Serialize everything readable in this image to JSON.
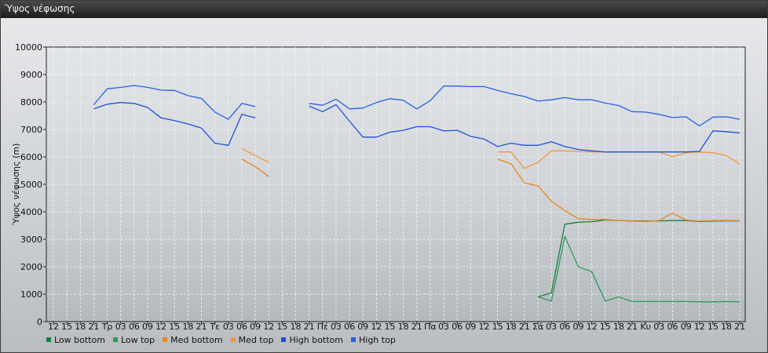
{
  "window": {
    "title": "Ύψος νέφωσης"
  },
  "chart_data": {
    "type": "line",
    "title": "",
    "xlabel": "",
    "ylabel": "Ύψος νέφωσης (m)",
    "ylim": [
      0,
      10000
    ],
    "yticks": [
      0,
      1000,
      2000,
      3000,
      4000,
      5000,
      6000,
      7000,
      8000,
      9000,
      10000
    ],
    "grid": true,
    "legend_position": "bottom-left",
    "x_tick_labels": [
      "12",
      "15",
      "18",
      "21",
      "Τρ",
      "03",
      "06",
      "09",
      "12",
      "15",
      "18",
      "21",
      "Τε",
      "03",
      "06",
      "09",
      "12",
      "15",
      "18",
      "21",
      "Πέ",
      "03",
      "06",
      "09",
      "12",
      "15",
      "18",
      "21",
      "Πα",
      "03",
      "06",
      "09",
      "12",
      "15",
      "18",
      "21",
      "Σά",
      "03",
      "06",
      "09",
      "12",
      "15",
      "18",
      "21",
      "Κυ",
      "03",
      "06",
      "09",
      "12",
      "15",
      "18",
      "21"
    ],
    "series": [
      {
        "name": "Low bottom",
        "color": "#1a7f45",
        "values": [
          null,
          null,
          null,
          null,
          null,
          null,
          null,
          null,
          null,
          null,
          null,
          null,
          null,
          null,
          null,
          null,
          null,
          null,
          null,
          null,
          null,
          null,
          null,
          null,
          null,
          null,
          null,
          null,
          null,
          null,
          null,
          null,
          null,
          null,
          null,
          null,
          900,
          1050,
          3550,
          3620,
          3640,
          3700,
          3680,
          3670,
          3670,
          3670,
          3680,
          3680,
          3650,
          3660,
          3670,
          3670
        ]
      },
      {
        "name": "Low top",
        "color": "#2f9a5a",
        "values": [
          null,
          null,
          null,
          null,
          null,
          null,
          null,
          null,
          null,
          null,
          null,
          null,
          null,
          null,
          null,
          null,
          null,
          null,
          null,
          null,
          null,
          null,
          null,
          null,
          null,
          null,
          null,
          null,
          null,
          null,
          null,
          null,
          null,
          null,
          null,
          null,
          900,
          750,
          3100,
          2000,
          1820,
          750,
          900,
          730,
          730,
          730,
          730,
          730,
          720,
          720,
          730,
          720
        ]
      },
      {
        "name": "Med bottom",
        "color": "#e8861e",
        "values": [
          null,
          null,
          null,
          null,
          null,
          null,
          null,
          null,
          null,
          null,
          null,
          null,
          null,
          null,
          5920,
          5650,
          5280,
          null,
          null,
          null,
          null,
          null,
          null,
          null,
          null,
          null,
          null,
          null,
          null,
          null,
          null,
          null,
          null,
          5920,
          5750,
          5050,
          4950,
          4380,
          4050,
          3750,
          3720,
          3720,
          3680,
          3660,
          3650,
          3680,
          3950,
          3700,
          3660,
          3680,
          3680,
          3680
        ]
      },
      {
        "name": "Med top",
        "color": "#f09a3a",
        "values": [
          null,
          null,
          null,
          null,
          null,
          null,
          null,
          null,
          null,
          null,
          null,
          null,
          null,
          null,
          6300,
          6050,
          5800,
          null,
          null,
          null,
          null,
          null,
          null,
          null,
          null,
          null,
          null,
          null,
          null,
          null,
          null,
          null,
          null,
          6180,
          6180,
          5580,
          5800,
          6220,
          6220,
          6200,
          6180,
          6180,
          6180,
          6180,
          6180,
          6180,
          6000,
          6150,
          6180,
          6150,
          6050,
          5730
        ]
      },
      {
        "name": "High bottom",
        "color": "#1f4fd8",
        "values": [
          null,
          null,
          null,
          7750,
          7920,
          7980,
          7950,
          7800,
          7420,
          7320,
          7200,
          7050,
          6500,
          6420,
          7550,
          7420,
          null,
          null,
          null,
          7850,
          7650,
          7900,
          7300,
          6720,
          6720,
          6900,
          6970,
          7100,
          7100,
          6950,
          6970,
          6750,
          6650,
          6380,
          6500,
          6420,
          6420,
          6550,
          6380,
          6270,
          6220,
          6180,
          6180,
          6180,
          6180,
          6180,
          6180,
          6180,
          6200,
          6950,
          6920,
          6870
        ]
      },
      {
        "name": "High top",
        "color": "#2a5fe0",
        "values": [
          null,
          null,
          null,
          7900,
          8480,
          8530,
          8600,
          8530,
          8430,
          8420,
          8230,
          8130,
          7630,
          7370,
          7950,
          7830,
          null,
          null,
          null,
          7950,
          7880,
          8100,
          7750,
          7780,
          7980,
          8120,
          8060,
          7750,
          8050,
          8580,
          8580,
          8560,
          8560,
          8420,
          8300,
          8200,
          8030,
          8080,
          8160,
          8080,
          8080,
          7960,
          7870,
          7650,
          7630,
          7550,
          7430,
          7460,
          7130,
          7450,
          7460,
          7370
        ]
      }
    ]
  }
}
